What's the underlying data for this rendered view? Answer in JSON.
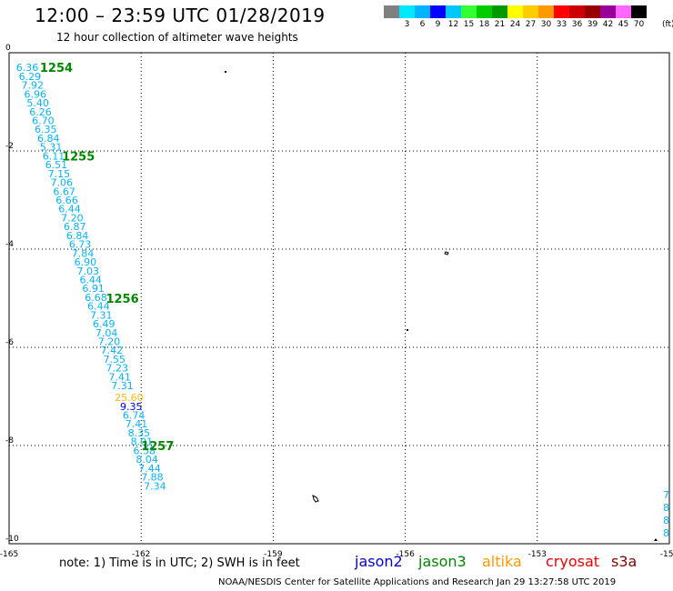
{
  "title": "12:00 – 23:59 UTC 01/28/2019",
  "subtitle": "12 hour collection of altimeter wave heights",
  "scale": {
    "unit": "(ft)",
    "swatches": [
      {
        "label": "",
        "color": "#808080"
      },
      {
        "label": "3",
        "color": "#00e8ff"
      },
      {
        "label": "6",
        "color": "#00b4ff"
      },
      {
        "label": "9",
        "color": "#0000ff"
      },
      {
        "label": "12",
        "color": "#00c8ff"
      },
      {
        "label": "15",
        "color": "#33ff33"
      },
      {
        "label": "18",
        "color": "#00cc00"
      },
      {
        "label": "21",
        "color": "#009900"
      },
      {
        "label": "24",
        "color": "#ffff00"
      },
      {
        "label": "27",
        "color": "#ffcc00"
      },
      {
        "label": "30",
        "color": "#ff9900"
      },
      {
        "label": "33",
        "color": "#ff0000"
      },
      {
        "label": "36",
        "color": "#cc0000"
      },
      {
        "label": "39",
        "color": "#990000"
      },
      {
        "label": "42",
        "color": "#990099"
      },
      {
        "label": "45",
        "color": "#ff66ff"
      },
      {
        "label": "70",
        "color": "#000000"
      }
    ]
  },
  "axes": {
    "lon_ticks": [
      "-165",
      "-162",
      "-159",
      "-156",
      "-153",
      "-150"
    ],
    "lat_ticks": [
      "0",
      "-2",
      "-4",
      "-6",
      "-8",
      "-10"
    ]
  },
  "tracks": [
    {
      "time": "1254",
      "lat": -0.3
    },
    {
      "time": "1255",
      "lat": -2.1
    },
    {
      "time": "1256",
      "lat": -5.0
    },
    {
      "time": "1257",
      "lat": -8.0
    }
  ],
  "observations": [
    {
      "v": "6.36",
      "lon": -164.84,
      "lat": -0.3
    },
    {
      "v": "6.29",
      "lon": -164.78,
      "lat": -0.48
    },
    {
      "v": "7.92",
      "lon": -164.72,
      "lat": -0.66
    },
    {
      "v": "6.96",
      "lon": -164.66,
      "lat": -0.84
    },
    {
      "v": "5.40",
      "lon": -164.6,
      "lat": -1.02
    },
    {
      "v": "6.26",
      "lon": -164.54,
      "lat": -1.2
    },
    {
      "v": "6.70",
      "lon": -164.48,
      "lat": -1.38
    },
    {
      "v": "6.35",
      "lon": -164.42,
      "lat": -1.56
    },
    {
      "v": "6.84",
      "lon": -164.36,
      "lat": -1.74
    },
    {
      "v": "5.31",
      "lon": -164.3,
      "lat": -1.92
    },
    {
      "v": "6.11",
      "lon": -164.24,
      "lat": -2.1
    },
    {
      "v": "6.51",
      "lon": -164.18,
      "lat": -2.28
    },
    {
      "v": "7.15",
      "lon": -164.12,
      "lat": -2.46
    },
    {
      "v": "7.06",
      "lon": -164.06,
      "lat": -2.64
    },
    {
      "v": "6.67",
      "lon": -164.0,
      "lat": -2.82
    },
    {
      "v": "6.66",
      "lon": -163.94,
      "lat": -3.0
    },
    {
      "v": "6.44",
      "lon": -163.88,
      "lat": -3.18
    },
    {
      "v": "7.20",
      "lon": -163.82,
      "lat": -3.36
    },
    {
      "v": "6.87",
      "lon": -163.76,
      "lat": -3.54
    },
    {
      "v": "6.84",
      "lon": -163.7,
      "lat": -3.72
    },
    {
      "v": "6.73",
      "lon": -163.64,
      "lat": -3.9
    },
    {
      "v": "7.84",
      "lon": -163.58,
      "lat": -4.08
    },
    {
      "v": "6.90",
      "lon": -163.52,
      "lat": -4.26
    },
    {
      "v": "7.03",
      "lon": -163.46,
      "lat": -4.44
    },
    {
      "v": "6.44",
      "lon": -163.4,
      "lat": -4.62
    },
    {
      "v": "6.91",
      "lon": -163.34,
      "lat": -4.8
    },
    {
      "v": "6.68",
      "lon": -163.28,
      "lat": -4.98
    },
    {
      "v": "6.44",
      "lon": -163.22,
      "lat": -5.16
    },
    {
      "v": "7.31",
      "lon": -163.16,
      "lat": -5.34
    },
    {
      "v": "6.49",
      "lon": -163.1,
      "lat": -5.52
    },
    {
      "v": "7.04",
      "lon": -163.04,
      "lat": -5.7
    },
    {
      "v": "7.20",
      "lon": -162.98,
      "lat": -5.88
    },
    {
      "v": "7.42",
      "lon": -162.92,
      "lat": -6.06
    },
    {
      "v": "7.55",
      "lon": -162.86,
      "lat": -6.24
    },
    {
      "v": "7.23",
      "lon": -162.8,
      "lat": -6.42
    },
    {
      "v": "7.41",
      "lon": -162.74,
      "lat": -6.6
    },
    {
      "v": "7.31",
      "lon": -162.68,
      "lat": -6.78
    },
    {
      "v": "25.60",
      "lon": -162.6,
      "lat": -7.02
    },
    {
      "v": "9.35",
      "lon": -162.48,
      "lat": -7.2
    },
    {
      "v": "6.74",
      "lon": -162.42,
      "lat": -7.38
    },
    {
      "v": "7.41",
      "lon": -162.36,
      "lat": -7.56
    },
    {
      "v": "8.35",
      "lon": -162.3,
      "lat": -7.74
    },
    {
      "v": "8.01",
      "lon": -162.24,
      "lat": -7.92
    },
    {
      "v": "6.58",
      "lon": -162.18,
      "lat": -8.1
    },
    {
      "v": "8.04",
      "lon": -162.12,
      "lat": -8.28
    },
    {
      "v": "7.44",
      "lon": -162.06,
      "lat": -8.46
    },
    {
      "v": "7.88",
      "lon": -162.0,
      "lat": -8.64
    },
    {
      "v": "7.34",
      "lon": -161.94,
      "lat": -8.82
    }
  ],
  "right_edge_values": [
    "7",
    "8",
    "8",
    "8"
  ],
  "note": "note: 1) Time is in UTC; 2) SWH is in feet",
  "satellites": [
    {
      "name": "jason2",
      "color": "#0000dd"
    },
    {
      "name": "jason3",
      "color": "#008800"
    },
    {
      "name": "altika",
      "color": "#ff9900"
    },
    {
      "name": "cryosat",
      "color": "#ee0000"
    },
    {
      "name": "s3a",
      "color": "#880000"
    }
  ],
  "footer": "NOAA/NESDIS Center for Satellite Applications and Research   Jan 29 13:27:58 UTC 2019"
}
